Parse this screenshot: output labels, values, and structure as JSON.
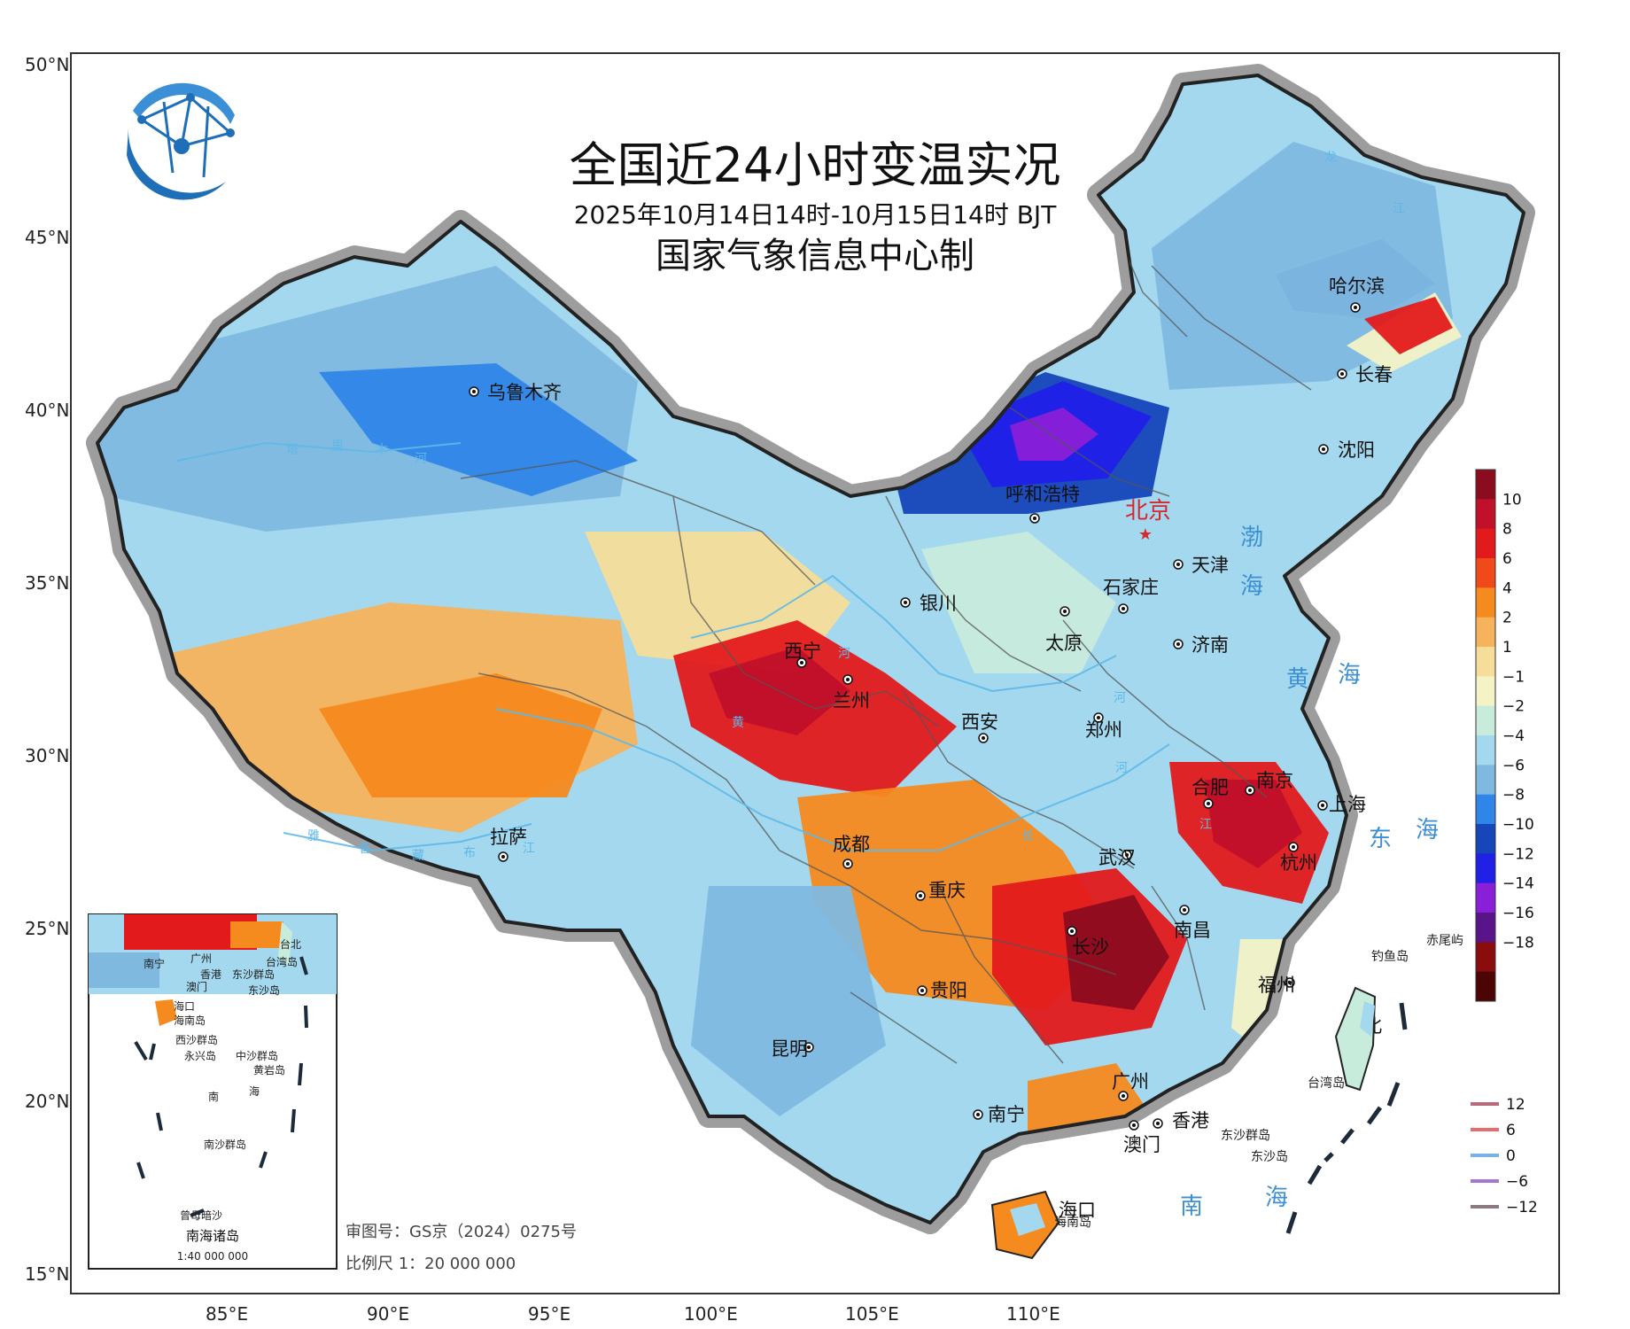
{
  "title": "全国近24小时变温实况",
  "subtitle": "2025年10月14日14时-10月15日14时 BJT",
  "producer": "国家气象信息中心制",
  "latitude_ticks": [
    "50°N",
    "45°N",
    "40°N",
    "35°N",
    "30°N",
    "25°N",
    "20°N",
    "15°N"
  ],
  "longitude_ticks": [
    "85°E",
    "90°E",
    "95°E",
    "100°E",
    "105°E",
    "110°E"
  ],
  "capital": {
    "name": "北京"
  },
  "cities": [
    {
      "name": "哈尔滨"
    },
    {
      "name": "长春"
    },
    {
      "name": "沈阳"
    },
    {
      "name": "乌鲁木齐"
    },
    {
      "name": "呼和浩特"
    },
    {
      "name": "天津"
    },
    {
      "name": "石家庄"
    },
    {
      "name": "银川"
    },
    {
      "name": "太原"
    },
    {
      "name": "济南"
    },
    {
      "name": "西宁"
    },
    {
      "name": "兰州"
    },
    {
      "name": "西安"
    },
    {
      "name": "郑州"
    },
    {
      "name": "合肥"
    },
    {
      "name": "南京"
    },
    {
      "name": "上海"
    },
    {
      "name": "拉萨"
    },
    {
      "name": "成都"
    },
    {
      "name": "武汉"
    },
    {
      "name": "杭州"
    },
    {
      "name": "重庆"
    },
    {
      "name": "长沙"
    },
    {
      "name": "南昌"
    },
    {
      "name": "贵阳"
    },
    {
      "name": "福州"
    },
    {
      "name": "台北"
    },
    {
      "name": "昆明"
    },
    {
      "name": "广州"
    },
    {
      "name": "南宁"
    },
    {
      "name": "香港"
    },
    {
      "name": "澳门"
    },
    {
      "name": "海口"
    }
  ],
  "seas": [
    "渤",
    "海",
    "黄",
    "海",
    "东",
    "海",
    "南",
    "海"
  ],
  "islands": [
    "钓鱼岛",
    "赤尾屿",
    "台湾岛",
    "东沙群岛",
    "东沙岛",
    "海南岛"
  ],
  "rivers_labels": [
    "塔",
    "里",
    "木",
    "河",
    "黄",
    "河",
    "雅",
    "鲁",
    "藏",
    "布",
    "江",
    "河",
    "河",
    "龙",
    "江",
    "长",
    "江"
  ],
  "legend_colorbar": {
    "ticks": [
      "10",
      "8",
      "6",
      "4",
      "2",
      "1",
      "−1",
      "−2",
      "−4",
      "−6",
      "−8",
      "−10",
      "−12",
      "−14",
      "−16",
      "−18"
    ],
    "colors": [
      "#8c0c1f",
      "#c0102a",
      "#e31a1c",
      "#f04a1a",
      "#f58a1e",
      "#f6b35c",
      "#f6de9a",
      "#f3f3c6",
      "#c8ecdc",
      "#a3d8ee",
      "#7fb9e0",
      "#2f86e8",
      "#1646b8",
      "#2020e8",
      "#8a1fd8",
      "#5a148a",
      "#8a0c0c",
      "#4c0505"
    ]
  },
  "legend_lines": [
    {
      "label": "12",
      "color": "#b56b7a"
    },
    {
      "label": "6",
      "color": "#e86a6a"
    },
    {
      "label": "0",
      "color": "#7ab2e6"
    },
    {
      "label": "−6",
      "color": "#a478cc"
    },
    {
      "label": "−12",
      "color": "#8a7a7e"
    }
  ],
  "inset": {
    "title": "南海诸岛",
    "scale": "1:40 000 000",
    "labels": [
      "南宁",
      "广州",
      "香港",
      "澳门",
      "台北",
      "台湾岛",
      "东沙群岛",
      "东沙岛",
      "海口",
      "海南岛",
      "西沙群岛",
      "永兴岛",
      "中沙群岛",
      "黄岩岛",
      "南",
      "海",
      "南沙群岛",
      "曾母暗沙"
    ]
  },
  "notes": {
    "approval": "审图号：GS京（2024）0275号",
    "scale": "比例尺  1：20 000 000"
  }
}
